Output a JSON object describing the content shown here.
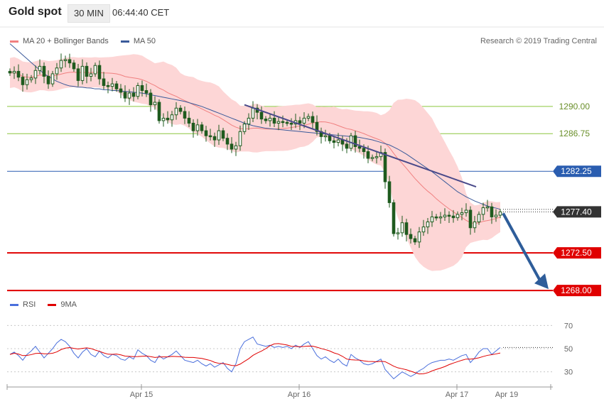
{
  "header": {
    "title": "Gold spot",
    "timeframe": "30 MIN",
    "time": "06:44:40 CET"
  },
  "legend": {
    "ma20": "MA 20 + Bollinger Bands",
    "ma50": "MA 50",
    "credit": "Research © 2019 Trading Central"
  },
  "rsi_legend": {
    "rsi": "RSI",
    "ma9": "9MA"
  },
  "colors": {
    "candle": "#1e5b1e",
    "ma20": "#f08080",
    "band": "#fdd6d6",
    "ma50": "#3a5a9a",
    "trendline": "#4a4a8a",
    "support": "#e00000",
    "resistance_green": "#8cc63f",
    "pivot": "#2a5db0",
    "arrow": "#2e5d9a",
    "rsi_line": "#4a6fdc",
    "rsi_ma": "#e00000"
  },
  "chart_data": [
    {
      "type": "candlestick",
      "title": "",
      "x": {
        "tick_labels": [
          "Apr 15",
          "Apr 16",
          "Apr 17",
          "Apr 19"
        ]
      },
      "y": {
        "range": [
          1267.5,
          1299.5
        ]
      },
      "levels": [
        {
          "name": "resistance-2",
          "value": 1290.0,
          "label": "1290.00",
          "style": "line"
        },
        {
          "name": "resistance-1",
          "value": 1286.75,
          "label": "1286.75",
          "style": "line"
        },
        {
          "name": "pivot",
          "value": 1282.25,
          "label": "1282.25",
          "style": "box"
        },
        {
          "name": "last-price",
          "value": 1277.4,
          "label": "1277.40",
          "style": "dark-box"
        },
        {
          "name": "support-1",
          "value": 1272.5,
          "label": "1272.50",
          "style": "red-box"
        },
        {
          "name": "support-2",
          "value": 1268.0,
          "label": "1268.00",
          "style": "red-box"
        }
      ],
      "closes": [
        1294.0,
        1294.2,
        1293.5,
        1292.6,
        1293.2,
        1293.4,
        1294.3,
        1294.8,
        1293.6,
        1292.7,
        1293.9,
        1294.6,
        1295.5,
        1295.6,
        1295.2,
        1294.5,
        1293.1,
        1294.8,
        1293.6,
        1293.9,
        1294.9,
        1293.3,
        1292.5,
        1292.4,
        1292.7,
        1292.1,
        1291.7,
        1291.0,
        1291.6,
        1291.2,
        1292.5,
        1291.9,
        1291.6,
        1290.2,
        1290.5,
        1288.3,
        1288.6,
        1288.4,
        1289.0,
        1289.8,
        1289.4,
        1288.6,
        1288.0,
        1287.1,
        1287.8,
        1287.1,
        1286.5,
        1286.4,
        1286.0,
        1287.1,
        1286.2,
        1285.5,
        1284.9,
        1285.3,
        1287.0,
        1287.9,
        1288.6,
        1289.8,
        1289.3,
        1288.5,
        1288.3,
        1288.6,
        1288.0,
        1288.2,
        1288.1,
        1288.0,
        1287.9,
        1288.3,
        1288.0,
        1288.6,
        1288.8,
        1288.1,
        1287.0,
        1286.4,
        1286.5,
        1285.9,
        1285.7,
        1286.0,
        1285.5,
        1285.0,
        1286.5,
        1285.2,
        1285.0,
        1284.6,
        1283.8,
        1283.9,
        1284.0,
        1284.5,
        1281.0,
        1278.5,
        1274.8,
        1274.9,
        1276.1,
        1274.7,
        1274.2,
        1273.8,
        1275.0,
        1275.6,
        1276.2,
        1276.8,
        1276.7,
        1276.8,
        1277.0,
        1276.9,
        1276.7,
        1277.1,
        1277.3,
        1277.6,
        1275.5,
        1276.2,
        1277.1,
        1277.9,
        1278.0,
        1276.8,
        1277.0,
        1277.4
      ],
      "ma50": [
        1297.5,
        1297.05,
        1296.6,
        1296.15,
        1295.7,
        1295.25,
        1294.8,
        1294.35,
        1293.9,
        1293.6,
        1293.3,
        1293.0,
        1292.8,
        1292.6,
        1292.45,
        1292.4,
        1292.32,
        1292.3,
        1292.22,
        1292.2,
        1292.1,
        1292.1,
        1292.0,
        1292.0,
        1291.9,
        1291.9,
        1291.85,
        1291.8,
        1291.75,
        1291.7,
        1291.65,
        1291.6,
        1291.5,
        1291.4,
        1291.3,
        1291.2,
        1291.1,
        1291.0,
        1290.9,
        1290.8,
        1290.7,
        1290.6,
        1290.45,
        1290.3,
        1290.15,
        1290.0,
        1289.8,
        1289.6,
        1289.4,
        1289.2,
        1289.0,
        1288.8,
        1288.6,
        1288.4,
        1288.2,
        1288.0,
        1287.85,
        1287.7,
        1287.6,
        1287.5,
        1287.4,
        1287.35,
        1287.3,
        1287.25,
        1287.2,
        1287.15,
        1287.1,
        1287.05,
        1287.0,
        1286.95,
        1286.9,
        1286.85,
        1286.8,
        1286.75,
        1286.7,
        1286.65,
        1286.6,
        1286.55,
        1286.5,
        1286.45,
        1286.4,
        1286.35,
        1286.3,
        1286.2,
        1286.1,
        1286.0,
        1285.85,
        1285.7,
        1285.55,
        1285.4,
        1285.15,
        1284.9,
        1284.6,
        1284.3,
        1283.95,
        1283.6,
        1283.25,
        1282.9,
        1282.55,
        1282.2,
        1281.8,
        1281.4,
        1281.0,
        1280.6,
        1280.2,
        1279.8,
        1279.5,
        1279.2,
        1278.95,
        1278.7,
        1278.5,
        1278.3,
        1278.1,
        1277.95,
        1277.85,
        1277.7
      ]
    },
    {
      "type": "line",
      "title": "",
      "y": {
        "range": [
          20,
          80
        ],
        "tick_labels": [
          "70",
          "50",
          "30"
        ]
      },
      "series": [
        {
          "name": "RSI",
          "values": [
            45,
            47,
            44,
            40,
            45,
            48,
            52,
            47,
            42,
            46,
            50,
            55,
            58,
            56,
            52,
            46,
            42,
            47,
            50,
            45,
            43,
            48,
            44,
            42,
            45,
            44,
            41,
            40,
            43,
            41,
            49,
            46,
            44,
            40,
            38,
            44,
            41,
            43,
            45,
            48,
            44,
            40,
            39,
            38,
            40,
            37,
            35,
            37,
            34,
            36,
            38,
            33,
            30,
            37,
            50,
            56,
            58,
            60,
            54,
            53,
            52,
            53,
            51,
            52,
            51,
            52,
            50,
            53,
            51,
            54,
            56,
            50,
            44,
            41,
            43,
            40,
            38,
            41,
            37,
            35,
            45,
            42,
            40,
            37,
            36,
            37,
            39,
            41,
            32,
            28,
            24,
            27,
            30,
            28,
            26,
            28,
            31,
            33,
            36,
            38,
            39,
            40,
            40,
            41,
            40,
            42,
            44,
            45,
            38,
            42,
            47,
            50,
            50,
            45,
            48,
            51
          ]
        }
      ]
    }
  ]
}
